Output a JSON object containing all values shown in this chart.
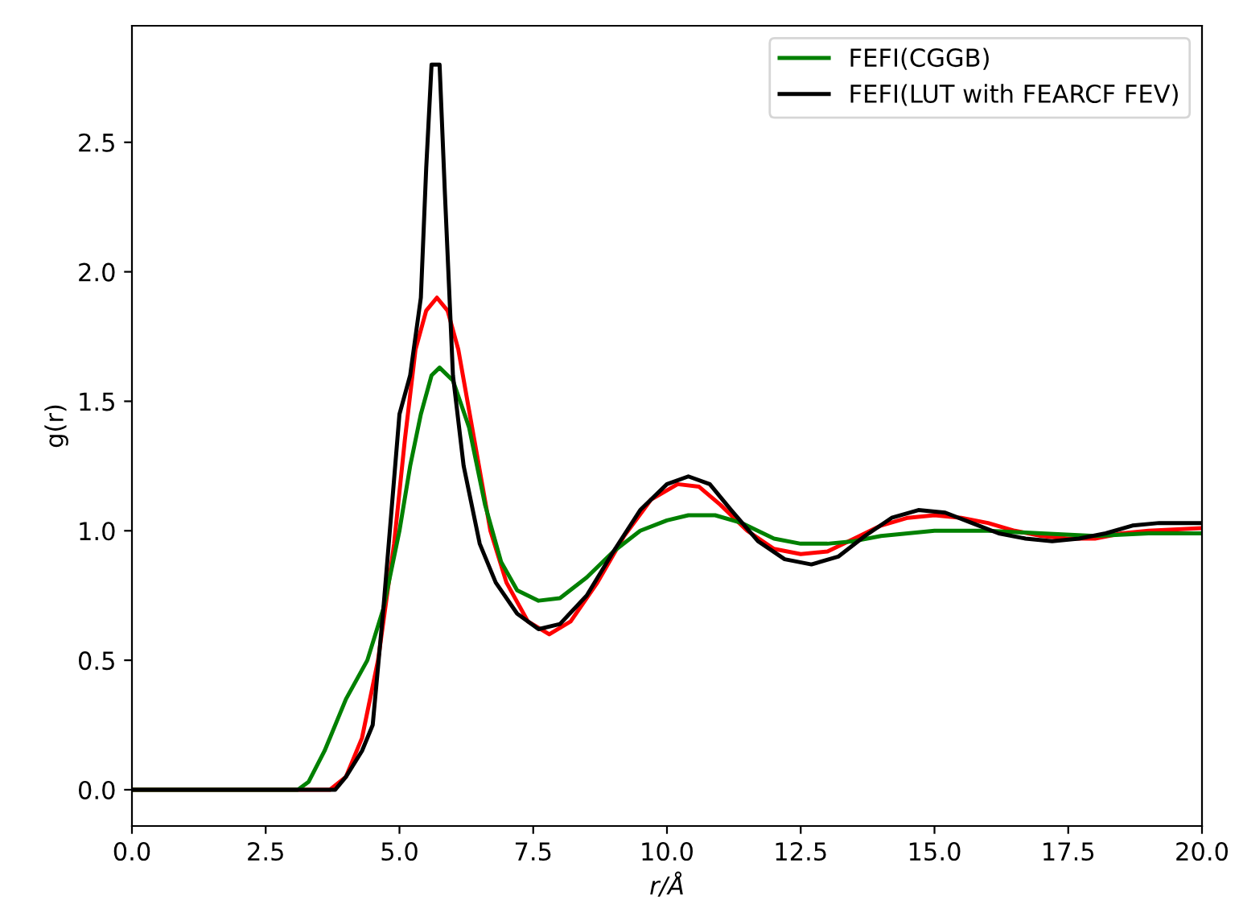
{
  "chart_data": {
    "type": "line",
    "xlabel": "r/Å",
    "ylabel": "g(r)",
    "xlim": [
      0,
      20
    ],
    "ylim": [
      -0.14,
      2.95
    ],
    "xticks": [
      {
        "value": 0,
        "label": "0.0"
      },
      {
        "value": 2.5,
        "label": "2.5"
      },
      {
        "value": 5,
        "label": "5.0"
      },
      {
        "value": 7.5,
        "label": "7.5"
      },
      {
        "value": 10,
        "label": "10.0"
      },
      {
        "value": 12.5,
        "label": "12.5"
      },
      {
        "value": 15,
        "label": "15.0"
      },
      {
        "value": 17.5,
        "label": "17.5"
      },
      {
        "value": 20,
        "label": "20.0"
      }
    ],
    "yticks": [
      {
        "value": 0,
        "label": "0.0"
      },
      {
        "value": 0.5,
        "label": "0.5"
      },
      {
        "value": 1,
        "label": "1.0"
      },
      {
        "value": 1.5,
        "label": "1.5"
      },
      {
        "value": 2,
        "label": "2.0"
      },
      {
        "value": 2.5,
        "label": "2.5"
      }
    ],
    "grid": false,
    "legend": "top right",
    "series": [
      {
        "color": "#ff0000",
        "x": [
          0,
          3.7,
          4.0,
          4.3,
          4.6,
          4.9,
          5.1,
          5.3,
          5.5,
          5.7,
          5.9,
          6.1,
          6.4,
          6.7,
          7.0,
          7.4,
          7.8,
          8.2,
          8.7,
          9.2,
          9.7,
          10.2,
          10.6,
          11.0,
          11.5,
          12.0,
          12.5,
          13.0,
          13.5,
          14.0,
          14.5,
          15.0,
          15.5,
          16.0,
          16.5,
          17.0,
          17.5,
          18.0,
          18.5,
          19.0,
          20.0
        ],
        "values": [
          0,
          0,
          0.05,
          0.2,
          0.5,
          0.95,
          1.35,
          1.7,
          1.85,
          1.9,
          1.85,
          1.7,
          1.35,
          1.0,
          0.8,
          0.65,
          0.6,
          0.65,
          0.8,
          0.98,
          1.12,
          1.18,
          1.17,
          1.1,
          1.0,
          0.93,
          0.91,
          0.92,
          0.97,
          1.02,
          1.05,
          1.06,
          1.05,
          1.03,
          1.0,
          0.98,
          0.97,
          0.97,
          0.99,
          1.0,
          1.01
        ]
      },
      {
        "name": "FEFI(CGGB)",
        "color": "#008000",
        "x": [
          0,
          3.1,
          3.3,
          3.6,
          4.0,
          4.4,
          4.7,
          5.0,
          5.2,
          5.4,
          5.6,
          5.75,
          6.0,
          6.3,
          6.6,
          6.9,
          7.2,
          7.6,
          8.0,
          8.5,
          9.0,
          9.5,
          10.0,
          10.4,
          10.9,
          11.4,
          12.0,
          12.5,
          13.0,
          13.5,
          14.0,
          15.0,
          16.0,
          17.0,
          18.0,
          19.0,
          20.0
        ],
        "values": [
          0,
          0,
          0.03,
          0.15,
          0.35,
          0.5,
          0.7,
          1.0,
          1.25,
          1.45,
          1.6,
          1.63,
          1.58,
          1.4,
          1.1,
          0.88,
          0.77,
          0.73,
          0.74,
          0.82,
          0.92,
          1.0,
          1.04,
          1.06,
          1.06,
          1.03,
          0.97,
          0.95,
          0.95,
          0.96,
          0.98,
          1.0,
          1.0,
          0.99,
          0.98,
          0.99,
          0.99
        ]
      },
      {
        "name": "FEFI(LUT with FEARCF FEV)",
        "color": "#000000",
        "x": [
          0,
          3.8,
          4.0,
          4.3,
          4.5,
          4.7,
          4.9,
          5.0,
          5.2,
          5.4,
          5.5,
          5.6,
          5.75,
          5.85,
          6.0,
          6.2,
          6.5,
          6.8,
          7.2,
          7.6,
          8.0,
          8.5,
          9.0,
          9.5,
          10.0,
          10.4,
          10.8,
          11.2,
          11.7,
          12.2,
          12.7,
          13.2,
          13.7,
          14.2,
          14.7,
          15.2,
          15.7,
          16.2,
          16.7,
          17.2,
          17.7,
          18.2,
          18.7,
          19.2,
          20.0
        ],
        "values": [
          0,
          0,
          0.05,
          0.15,
          0.25,
          0.7,
          1.2,
          1.45,
          1.6,
          1.9,
          2.4,
          2.8,
          2.8,
          2.3,
          1.6,
          1.25,
          0.95,
          0.8,
          0.68,
          0.62,
          0.64,
          0.75,
          0.92,
          1.08,
          1.18,
          1.21,
          1.18,
          1.08,
          0.96,
          0.89,
          0.87,
          0.9,
          0.98,
          1.05,
          1.08,
          1.07,
          1.03,
          0.99,
          0.97,
          0.96,
          0.97,
          0.99,
          1.02,
          1.03,
          1.03
        ]
      }
    ]
  }
}
